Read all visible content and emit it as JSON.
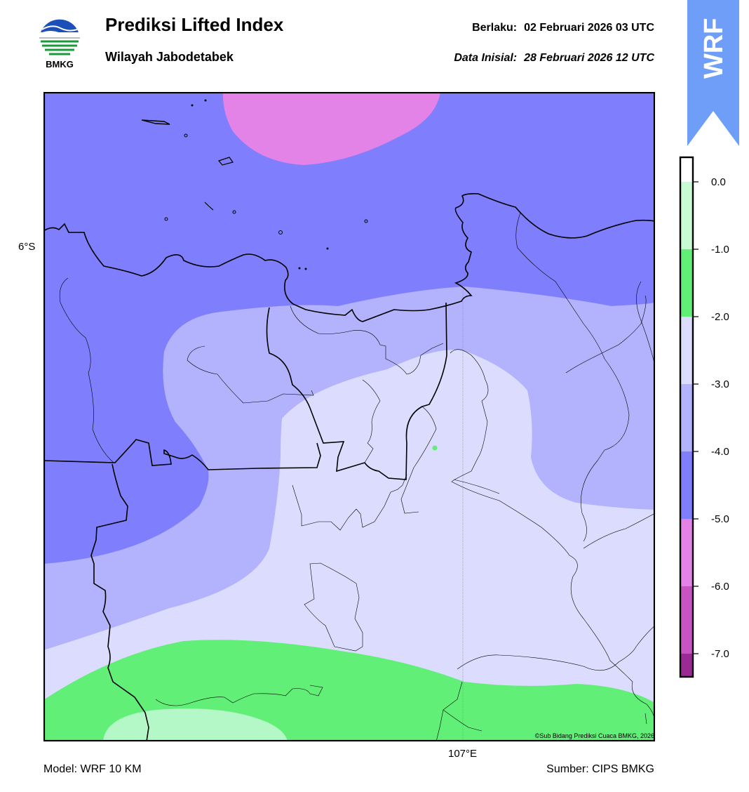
{
  "header": {
    "title": "Prediksi Lifted Index",
    "subtitle": "Wilayah Jabodetabek",
    "valid_label": "Berlaku:",
    "valid_value": "02 Februari 2026 03 UTC",
    "init_label": "Data Inisial:",
    "init_value": "28 Februari 2026 12 UTC",
    "logo_text": "BMKG",
    "ribbon_text": "WRF"
  },
  "map": {
    "lat_label": "6°S",
    "lon_label": "107°E",
    "credit": "©Sub Bidang Prediksi Cuaca BMKG, 2026"
  },
  "colorbar": {
    "ticks": [
      "0.0",
      "-1.0",
      "-2.0",
      "-3.0",
      "-4.0",
      "-5.0",
      "-6.0",
      "-7.0"
    ],
    "bands": [
      {
        "range": "above 0.0",
        "color": "#ffffff"
      },
      {
        "range": "0.0 to -1.0",
        "color": "#c6fbd4"
      },
      {
        "range": "-1.0 to -2.0",
        "color": "#62ef78"
      },
      {
        "range": "-2.0 to -3.0",
        "color": "#dcdcfe"
      },
      {
        "range": "-3.0 to -4.0",
        "color": "#b2b2fd"
      },
      {
        "range": "-4.0 to -5.0",
        "color": "#7f7ffd"
      },
      {
        "range": "-5.0 to -6.0",
        "color": "#e383e7"
      },
      {
        "range": "-6.0 to -7.0",
        "color": "#c754c2"
      },
      {
        "range": "below -7.0",
        "color": "#9a2b95"
      }
    ]
  },
  "footer": {
    "model": "Model: WRF 10 KM",
    "source": "Sumber: CIPS BMKG"
  },
  "colors": {
    "ribbon": "#6e9ef8",
    "coast": "#000000"
  }
}
